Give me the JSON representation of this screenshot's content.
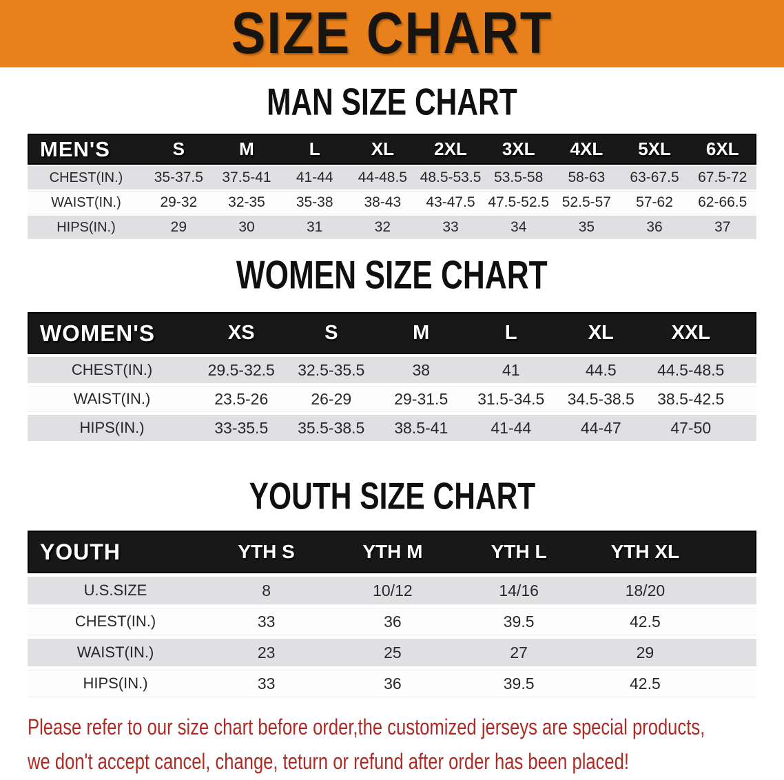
{
  "banner": {
    "title": "SIZE CHART",
    "bg_color": "#E8811C"
  },
  "mens": {
    "title": "MAN SIZE CHART",
    "header_label": "MEN'S",
    "columns": [
      "S",
      "M",
      "L",
      "XL",
      "2XL",
      "3XL",
      "4XL",
      "5XL",
      "6XL"
    ],
    "rows": [
      {
        "label": "CHEST(IN.)",
        "values": [
          "35-37.5",
          "37.5-41",
          "41-44",
          "44-48.5",
          "48.5-53.5",
          "53.5-58",
          "58-63",
          "63-67.5",
          "67.5-72"
        ]
      },
      {
        "label": "WAIST(IN.)",
        "values": [
          "29-32",
          "32-35",
          "35-38",
          "38-43",
          "43-47.5",
          "47.5-52.5",
          "52.5-57",
          "57-62",
          "62-66.5"
        ]
      },
      {
        "label": "HIPS(IN.)",
        "values": [
          "29",
          "30",
          "31",
          "32",
          "33",
          "34",
          "35",
          "36",
          "37"
        ]
      }
    ]
  },
  "womens": {
    "title": "WOMEN SIZE CHART",
    "header_label": "WOMEN'S",
    "columns": [
      "XS",
      "S",
      "M",
      "L",
      "XL",
      "XXL"
    ],
    "rows": [
      {
        "label": "CHEST(IN.)",
        "values": [
          "29.5-32.5",
          "32.5-35.5",
          "38",
          "41",
          "44.5",
          "44.5-48.5"
        ]
      },
      {
        "label": "WAIST(IN.)",
        "values": [
          "23.5-26",
          "26-29",
          "29-31.5",
          "31.5-34.5",
          "34.5-38.5",
          "38.5-42.5"
        ]
      },
      {
        "label": "HIPS(IN.)",
        "values": [
          "33-35.5",
          "35.5-38.5",
          "38.5-41",
          "41-44",
          "44-47",
          "47-50"
        ]
      }
    ]
  },
  "youth": {
    "title": "YOUTH SIZE CHART",
    "header_label": "YOUTH",
    "columns": [
      "YTH S",
      "YTH M",
      "YTH L",
      "YTH XL"
    ],
    "rows": [
      {
        "label": "U.S.SIZE",
        "values": [
          "8",
          "10/12",
          "14/16",
          "18/20"
        ]
      },
      {
        "label": "CHEST(IN.)",
        "values": [
          "33",
          "36",
          "39.5",
          "42.5"
        ]
      },
      {
        "label": "WAIST(IN.)",
        "values": [
          "23",
          "25",
          "27",
          "29"
        ]
      },
      {
        "label": "HIPS(IN.)",
        "values": [
          "33",
          "36",
          "39.5",
          "42.5"
        ]
      }
    ]
  },
  "footer": {
    "line1": "Please refer to our size chart before order,the customized jerseys are special products,",
    "line2": "we don't accept cancel, change, teturn or refund after order has been placed!",
    "text_color": "#AE2B25"
  },
  "colors": {
    "header_bar": "#181818",
    "row_gray": "#E0E0E2",
    "row_white": "#FDFDFD"
  }
}
